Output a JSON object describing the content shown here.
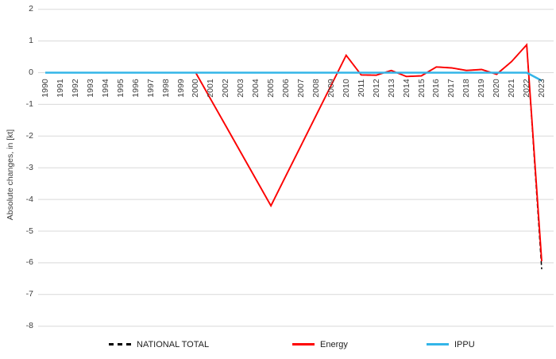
{
  "chart_data": {
    "type": "line",
    "title": "",
    "xlabel": "",
    "ylabel": "Absolute changes, in [kt]",
    "ylim": [
      -8,
      2
    ],
    "yticks": [
      2,
      1,
      0,
      -1,
      -2,
      -3,
      -4,
      -5,
      -6,
      -7,
      -8
    ],
    "grid": true,
    "gridline_color": "#d9d9d9",
    "legend_position": "bottom",
    "years": [
      1990,
      1991,
      1992,
      1993,
      1994,
      1995,
      1996,
      1997,
      1998,
      1999,
      2000,
      2001,
      2002,
      2003,
      2004,
      2005,
      2006,
      2007,
      2008,
      2009,
      2010,
      2011,
      2012,
      2013,
      2014,
      2015,
      2016,
      2017,
      2018,
      2019,
      2020,
      2021,
      2022,
      2023
    ],
    "series": [
      {
        "name": "NATIONAL TOTAL",
        "color": "#000000",
        "dash": "dashed",
        "width": 1.5,
        "values": [
          0,
          0,
          0,
          0,
          0,
          0,
          0,
          0,
          0,
          0,
          0,
          -0.84,
          -1.68,
          -2.52,
          -3.36,
          -4.2,
          -3.25,
          -2.3,
          -1.35,
          -0.4,
          0.55,
          -0.07,
          -0.08,
          0.07,
          -0.12,
          -0.1,
          0.18,
          0.15,
          0.07,
          0.1,
          -0.05,
          0.35,
          0.88,
          -6.2
        ]
      },
      {
        "name": "Energy",
        "color": "#fe0000",
        "dash": "solid",
        "width": 1.9,
        "values": [
          0,
          0,
          0,
          0,
          0,
          0,
          0,
          0,
          0,
          0,
          0,
          -0.84,
          -1.68,
          -2.52,
          -3.36,
          -4.2,
          -3.25,
          -2.3,
          -1.35,
          -0.4,
          0.55,
          -0.07,
          -0.08,
          0.07,
          -0.12,
          -0.1,
          0.18,
          0.15,
          0.07,
          0.1,
          -0.05,
          0.35,
          0.88,
          -5.95
        ]
      },
      {
        "name": "IPPU",
        "color": "#33b5e8",
        "dash": "solid",
        "width": 2.5,
        "values": [
          0,
          0,
          0,
          0,
          0,
          0,
          0,
          0,
          0,
          0,
          0,
          0,
          0,
          0,
          0,
          0,
          0,
          0,
          0,
          0,
          0,
          0,
          0,
          0,
          0,
          0,
          0,
          0,
          0,
          0,
          0,
          0,
          0,
          -0.25
        ]
      }
    ]
  }
}
